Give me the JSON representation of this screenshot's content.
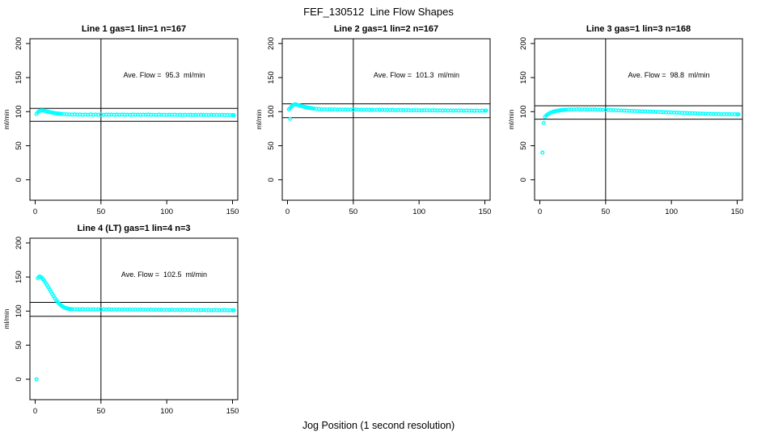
{
  "page_title": "FEF_130512  Line Flow Shapes",
  "xlabel": "Jog Position (1 second resolution)",
  "colors": {
    "points": "#00FFFF",
    "axis": "#000000",
    "background": "#FFFFFF"
  },
  "axes": {
    "ylabel": "ml/min",
    "x_ticks": [
      0,
      50,
      100,
      150
    ],
    "y_ticks": [
      0,
      50,
      100,
      150,
      200
    ],
    "x_range": [
      -4,
      154
    ],
    "y_range": [
      -30,
      207
    ]
  },
  "chart_data": [
    {
      "type": "scatter",
      "title": "Line 1 gas=1 lin=1 n=167",
      "annotation": "Ave. Flow =  95.3  ml/min",
      "ave_flow": 95.3,
      "n": 167,
      "ref_lines": {
        "horizontal": [
          104.8,
          85.8
        ],
        "vertical": [
          50
        ]
      },
      "points": [
        [
          1,
          96.5
        ],
        [
          2,
          99.2
        ],
        [
          3,
          100.6
        ],
        [
          4,
          101.5
        ],
        [
          5,
          101.9
        ],
        [
          6,
          101.7
        ],
        [
          7,
          101.3
        ],
        [
          8,
          100.8
        ],
        [
          9,
          100.3
        ],
        [
          10,
          99.8
        ],
        [
          11,
          99.3
        ],
        [
          12,
          98.9
        ],
        [
          13,
          98.5
        ],
        [
          14,
          98.2
        ],
        [
          15,
          97.9
        ],
        [
          16,
          97.6
        ],
        [
          17,
          97.3
        ],
        [
          18,
          97.1
        ],
        [
          19,
          96.9
        ],
        [
          20,
          96.7
        ],
        [
          22,
          96.4
        ],
        [
          24,
          96.1
        ],
        [
          26,
          95.9
        ],
        [
          28,
          95.8
        ],
        [
          30,
          96.0
        ],
        [
          32,
          95.6
        ],
        [
          34,
          95.9
        ],
        [
          36,
          95.5
        ],
        [
          38,
          95.8
        ],
        [
          40,
          95.5
        ],
        [
          42,
          95.9
        ],
        [
          44,
          95.4
        ],
        [
          46,
          95.8
        ],
        [
          48,
          95.5
        ],
        [
          50,
          95.7
        ],
        [
          52,
          95.4
        ],
        [
          54,
          95.8
        ],
        [
          56,
          95.5
        ],
        [
          58,
          95.7
        ],
        [
          60,
          95.3
        ],
        [
          62,
          95.7
        ],
        [
          64,
          95.5
        ],
        [
          66,
          95.8
        ],
        [
          68,
          95.4
        ],
        [
          70,
          95.6
        ],
        [
          72,
          95.3
        ],
        [
          74,
          95.7
        ],
        [
          76,
          95.4
        ],
        [
          78,
          95.6
        ],
        [
          80,
          95.3
        ],
        [
          82,
          95.6
        ],
        [
          84,
          95.4
        ],
        [
          86,
          95.7
        ],
        [
          88,
          95.3
        ],
        [
          90,
          95.5
        ],
        [
          92,
          95.2
        ],
        [
          94,
          95.6
        ],
        [
          96,
          95.3
        ],
        [
          98,
          95.5
        ],
        [
          100,
          95.2
        ],
        [
          102,
          95.5
        ],
        [
          104,
          95.3
        ],
        [
          106,
          95.6
        ],
        [
          108,
          95.2
        ],
        [
          110,
          95.4
        ],
        [
          112,
          95.1
        ],
        [
          114,
          95.5
        ],
        [
          116,
          95.2
        ],
        [
          118,
          95.4
        ],
        [
          120,
          95.1
        ],
        [
          122,
          95.4
        ],
        [
          124,
          95.2
        ],
        [
          126,
          95.5
        ],
        [
          128,
          95.1
        ],
        [
          130,
          95.3
        ],
        [
          132,
          95.0
        ],
        [
          134,
          95.4
        ],
        [
          136,
          95.1
        ],
        [
          138,
          95.3
        ],
        [
          140,
          95.0
        ],
        [
          142,
          95.3
        ],
        [
          144,
          95.1
        ],
        [
          146,
          95.2
        ],
        [
          148,
          94.9
        ],
        [
          150,
          95.0
        ],
        [
          151,
          94.8
        ]
      ]
    },
    {
      "type": "scatter",
      "title": "Line 2 gas=1 lin=2 n=167",
      "annotation": "Ave. Flow =  101.3  ml/min",
      "ave_flow": 101.3,
      "n": 167,
      "ref_lines": {
        "horizontal": [
          111.4,
          91.2
        ],
        "vertical": [
          50
        ]
      },
      "points": [
        [
          1,
          103.3
        ],
        [
          2,
          89.5
        ],
        [
          2,
          105.0
        ],
        [
          3,
          107.4
        ],
        [
          4,
          109.2
        ],
        [
          5,
          110.4
        ],
        [
          6,
          110.7
        ],
        [
          7,
          110.3
        ],
        [
          8,
          109.7
        ],
        [
          9,
          109.1
        ],
        [
          10,
          108.5
        ],
        [
          11,
          107.9
        ],
        [
          12,
          107.4
        ],
        [
          13,
          106.9
        ],
        [
          14,
          106.5
        ],
        [
          15,
          106.1
        ],
        [
          16,
          105.7
        ],
        [
          17,
          105.4
        ],
        [
          18,
          105.1
        ],
        [
          19,
          104.8
        ],
        [
          20,
          104.5
        ],
        [
          22,
          104.1
        ],
        [
          24,
          103.8
        ],
        [
          26,
          103.5
        ],
        [
          28,
          103.3
        ],
        [
          30,
          103.2
        ],
        [
          32,
          103.4
        ],
        [
          34,
          103.1
        ],
        [
          36,
          103.3
        ],
        [
          38,
          103.0
        ],
        [
          40,
          103.2
        ],
        [
          42,
          102.9
        ],
        [
          44,
          103.1
        ],
        [
          46,
          102.8
        ],
        [
          48,
          103.0
        ],
        [
          50,
          102.9
        ],
        [
          52,
          103.1
        ],
        [
          54,
          102.7
        ],
        [
          56,
          102.9
        ],
        [
          58,
          102.6
        ],
        [
          60,
          102.8
        ],
        [
          62,
          102.5
        ],
        [
          64,
          102.8
        ],
        [
          66,
          102.4
        ],
        [
          68,
          102.7
        ],
        [
          70,
          102.5
        ],
        [
          72,
          102.7
        ],
        [
          74,
          102.3
        ],
        [
          76,
          102.6
        ],
        [
          78,
          102.3
        ],
        [
          80,
          102.5
        ],
        [
          82,
          102.2
        ],
        [
          84,
          102.4
        ],
        [
          86,
          102.1
        ],
        [
          88,
          102.4
        ],
        [
          90,
          102.0
        ],
        [
          92,
          102.3
        ],
        [
          94,
          102.0
        ],
        [
          96,
          102.2
        ],
        [
          98,
          101.9
        ],
        [
          100,
          102.1
        ],
        [
          102,
          101.9
        ],
        [
          104,
          102.2
        ],
        [
          106,
          101.8
        ],
        [
          108,
          102.0
        ],
        [
          110,
          101.8
        ],
        [
          112,
          102.1
        ],
        [
          114,
          101.7
        ],
        [
          116,
          101.9
        ],
        [
          118,
          101.6
        ],
        [
          120,
          101.9
        ],
        [
          122,
          101.6
        ],
        [
          124,
          101.8
        ],
        [
          126,
          101.5
        ],
        [
          128,
          101.8
        ],
        [
          130,
          101.5
        ],
        [
          132,
          101.7
        ],
        [
          134,
          101.4
        ],
        [
          136,
          101.7
        ],
        [
          138,
          101.4
        ],
        [
          140,
          101.6
        ],
        [
          142,
          101.3
        ],
        [
          144,
          101.6
        ],
        [
          146,
          101.3
        ],
        [
          148,
          101.5
        ],
        [
          150,
          101.4
        ],
        [
          151,
          101.5
        ]
      ]
    },
    {
      "type": "scatter",
      "title": "Line 3 gas=1 lin=3 n=168",
      "annotation": "Ave. Flow =  98.8  ml/min",
      "ave_flow": 98.8,
      "n": 168,
      "ref_lines": {
        "horizontal": [
          108.7,
          88.9
        ],
        "vertical": [
          50
        ]
      },
      "points": [
        [
          2,
          40.0
        ],
        [
          3,
          83.5
        ],
        [
          4,
          92.3
        ],
        [
          5,
          94.6
        ],
        [
          6,
          96.1
        ],
        [
          7,
          97.3
        ],
        [
          8,
          98.3
        ],
        [
          9,
          99.1
        ],
        [
          10,
          99.8
        ],
        [
          11,
          100.3
        ],
        [
          12,
          100.8
        ],
        [
          13,
          101.2
        ],
        [
          14,
          101.6
        ],
        [
          15,
          101.9
        ],
        [
          16,
          102.1
        ],
        [
          17,
          102.3
        ],
        [
          18,
          102.5
        ],
        [
          19,
          102.6
        ],
        [
          20,
          102.8
        ],
        [
          22,
          103.0
        ],
        [
          24,
          103.1
        ],
        [
          26,
          103.2
        ],
        [
          28,
          103.3
        ],
        [
          30,
          103.3
        ],
        [
          32,
          103.2
        ],
        [
          34,
          103.3
        ],
        [
          36,
          103.1
        ],
        [
          38,
          103.2
        ],
        [
          40,
          103.0
        ],
        [
          42,
          103.1
        ],
        [
          44,
          102.9
        ],
        [
          46,
          102.8
        ],
        [
          48,
          102.7
        ],
        [
          50,
          102.6
        ],
        [
          52,
          102.4
        ],
        [
          54,
          102.3
        ],
        [
          56,
          102.1
        ],
        [
          58,
          102.0
        ],
        [
          60,
          101.8
        ],
        [
          62,
          101.7
        ],
        [
          64,
          101.5
        ],
        [
          66,
          101.4
        ],
        [
          68,
          101.2
        ],
        [
          70,
          101.1
        ],
        [
          72,
          100.9
        ],
        [
          74,
          100.8
        ],
        [
          76,
          100.6
        ],
        [
          78,
          100.5
        ],
        [
          80,
          100.3
        ],
        [
          82,
          100.2
        ],
        [
          84,
          100.0
        ],
        [
          86,
          99.9
        ],
        [
          88,
          99.7
        ],
        [
          90,
          99.6
        ],
        [
          92,
          99.4
        ],
        [
          94,
          99.3
        ],
        [
          96,
          99.1
        ],
        [
          98,
          99.0
        ],
        [
          100,
          98.8
        ],
        [
          102,
          98.7
        ],
        [
          104,
          98.5
        ],
        [
          106,
          98.4
        ],
        [
          108,
          98.2
        ],
        [
          110,
          98.1
        ],
        [
          112,
          97.9
        ],
        [
          114,
          97.8
        ],
        [
          116,
          97.6
        ],
        [
          118,
          97.5
        ],
        [
          120,
          97.3
        ],
        [
          122,
          97.2
        ],
        [
          124,
          97.0
        ],
        [
          126,
          96.9
        ],
        [
          128,
          96.8
        ],
        [
          130,
          96.7
        ],
        [
          132,
          96.6
        ],
        [
          134,
          96.5
        ],
        [
          136,
          96.5
        ],
        [
          138,
          96.4
        ],
        [
          140,
          96.4
        ],
        [
          142,
          96.3
        ],
        [
          144,
          96.3
        ],
        [
          146,
          96.2
        ],
        [
          148,
          96.2
        ],
        [
          150,
          96.1
        ],
        [
          151,
          96.1
        ]
      ]
    },
    {
      "type": "scatter",
      "title": "Line 4 (LT) gas=1 lin=4 n=3",
      "annotation": "Ave. Flow =  102.5  ml/min",
      "ave_flow": 102.5,
      "n": 3,
      "ref_lines": {
        "horizontal": [
          112.8,
          92.3
        ],
        "vertical": [
          50
        ]
      },
      "points": [
        [
          1,
          0.0
        ],
        [
          2,
          148.2
        ],
        [
          3,
          150.6
        ],
        [
          4,
          150.3
        ],
        [
          5,
          148.9
        ],
        [
          6,
          146.6
        ],
        [
          7,
          144.0
        ],
        [
          8,
          141.2
        ],
        [
          9,
          138.2
        ],
        [
          10,
          135.0
        ],
        [
          11,
          131.7
        ],
        [
          12,
          128.4
        ],
        [
          13,
          125.1
        ],
        [
          14,
          121.9
        ],
        [
          15,
          118.9
        ],
        [
          16,
          116.1
        ],
        [
          17,
          113.6
        ],
        [
          18,
          111.4
        ],
        [
          19,
          109.5
        ],
        [
          20,
          107.9
        ],
        [
          21,
          106.6
        ],
        [
          22,
          105.5
        ],
        [
          23,
          104.7
        ],
        [
          24,
          104.0
        ],
        [
          25,
          103.5
        ],
        [
          26,
          103.1
        ],
        [
          27,
          102.9
        ],
        [
          28,
          102.7
        ],
        [
          30,
          102.6
        ],
        [
          32,
          102.7
        ],
        [
          34,
          102.5
        ],
        [
          36,
          102.7
        ],
        [
          38,
          102.4
        ],
        [
          40,
          102.6
        ],
        [
          42,
          102.4
        ],
        [
          44,
          102.6
        ],
        [
          46,
          102.3
        ],
        [
          48,
          102.5
        ],
        [
          50,
          102.4
        ],
        [
          52,
          102.6
        ],
        [
          54,
          102.3
        ],
        [
          56,
          102.5
        ],
        [
          58,
          102.2
        ],
        [
          60,
          102.4
        ],
        [
          62,
          102.2
        ],
        [
          64,
          102.4
        ],
        [
          66,
          102.1
        ],
        [
          68,
          102.3
        ],
        [
          70,
          102.1
        ],
        [
          72,
          102.3
        ],
        [
          74,
          102.0
        ],
        [
          76,
          102.2
        ],
        [
          78,
          102.0
        ],
        [
          80,
          102.2
        ],
        [
          82,
          101.9
        ],
        [
          84,
          102.1
        ],
        [
          86,
          101.9
        ],
        [
          88,
          102.1
        ],
        [
          90,
          101.8
        ],
        [
          92,
          102.0
        ],
        [
          94,
          101.8
        ],
        [
          96,
          102.0
        ],
        [
          98,
          101.7
        ],
        [
          100,
          101.9
        ],
        [
          102,
          101.7
        ],
        [
          104,
          102.0
        ],
        [
          106,
          101.6
        ],
        [
          108,
          101.8
        ],
        [
          110,
          101.6
        ],
        [
          112,
          101.9
        ],
        [
          114,
          101.5
        ],
        [
          116,
          101.7
        ],
        [
          118,
          101.5
        ],
        [
          120,
          101.8
        ],
        [
          122,
          101.4
        ],
        [
          124,
          101.6
        ],
        [
          126,
          101.4
        ],
        [
          128,
          101.7
        ],
        [
          130,
          101.3
        ],
        [
          132,
          101.5
        ],
        [
          134,
          101.3
        ],
        [
          136,
          101.6
        ],
        [
          138,
          101.2
        ],
        [
          140,
          101.4
        ],
        [
          142,
          101.2
        ],
        [
          144,
          101.5
        ],
        [
          146,
          101.1
        ],
        [
          148,
          101.3
        ],
        [
          150,
          101.2
        ],
        [
          151,
          101.3
        ]
      ]
    }
  ]
}
